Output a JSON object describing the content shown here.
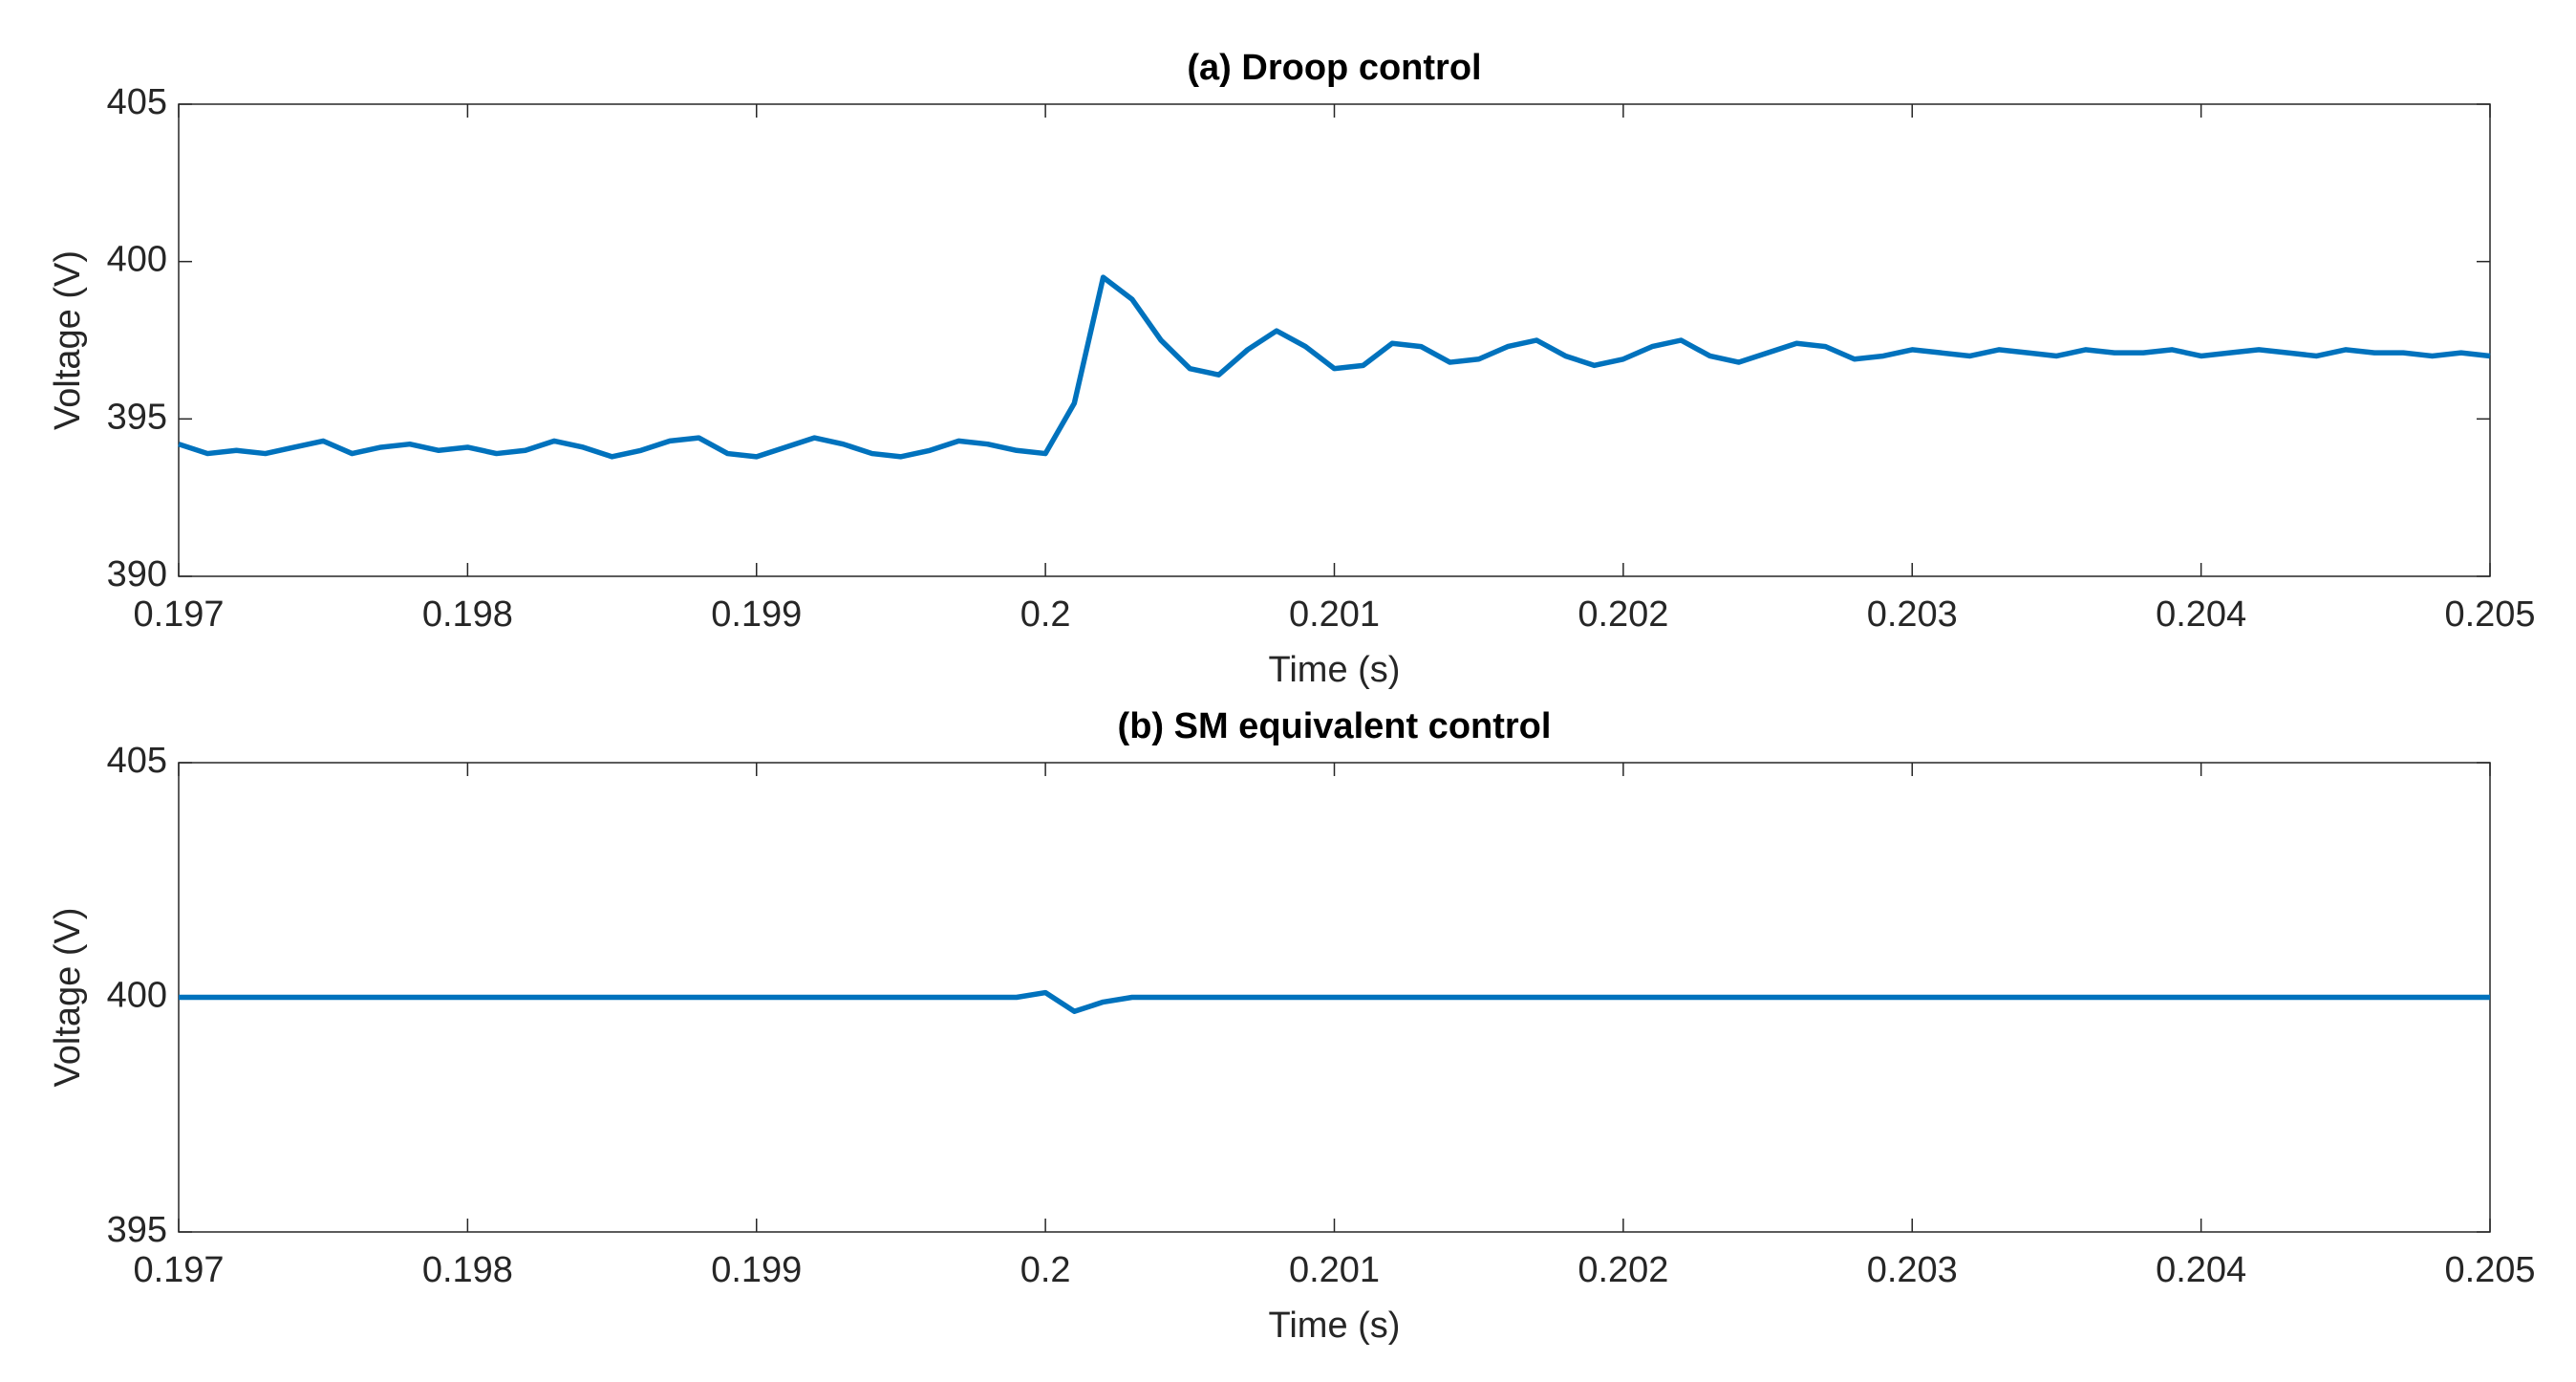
{
  "chart_data": [
    {
      "type": "line",
      "title": "(a) Droop control",
      "xlabel": "Time (s)",
      "ylabel": "Voltage (V)",
      "color": "#0072bd",
      "xlim": [
        0.197,
        0.205
      ],
      "xticks": [
        0.197,
        0.198,
        0.199,
        0.2,
        0.201,
        0.202,
        0.203,
        0.204,
        0.205
      ],
      "ylim": [
        390,
        405
      ],
      "yticks": [
        390,
        395,
        400,
        405
      ],
      "x": [
        0.197,
        0.1971,
        0.1972,
        0.1973,
        0.1974,
        0.1975,
        0.1976,
        0.1977,
        0.1978,
        0.1979,
        0.198,
        0.1981,
        0.1982,
        0.1983,
        0.1984,
        0.1985,
        0.1986,
        0.1987,
        0.1988,
        0.1989,
        0.199,
        0.1991,
        0.1992,
        0.1993,
        0.1994,
        0.1995,
        0.1996,
        0.1997,
        0.1998,
        0.1999,
        0.2,
        0.2001,
        0.2002,
        0.2003,
        0.2004,
        0.2005,
        0.2006,
        0.2007,
        0.2008,
        0.2009,
        0.201,
        0.2011,
        0.2012,
        0.2013,
        0.2014,
        0.2015,
        0.2016,
        0.2017,
        0.2018,
        0.2019,
        0.202,
        0.2021,
        0.2022,
        0.2023,
        0.2024,
        0.2025,
        0.2026,
        0.2027,
        0.2028,
        0.2029,
        0.203,
        0.2031,
        0.2032,
        0.2033,
        0.2034,
        0.2035,
        0.2036,
        0.2037,
        0.2038,
        0.2039,
        0.204,
        0.2041,
        0.2042,
        0.2043,
        0.2044,
        0.2045,
        0.2046,
        0.2047,
        0.2048,
        0.2049,
        0.205
      ],
      "values": [
        394.2,
        393.9,
        394.0,
        393.9,
        394.1,
        394.3,
        393.9,
        394.1,
        394.2,
        394.0,
        394.1,
        393.9,
        394.0,
        394.3,
        394.1,
        393.8,
        394.0,
        394.3,
        394.4,
        393.9,
        393.8,
        394.1,
        394.4,
        394.2,
        393.9,
        393.8,
        394.0,
        394.3,
        394.2,
        394.0,
        393.9,
        395.5,
        399.5,
        398.8,
        397.5,
        396.6,
        396.4,
        397.2,
        397.8,
        397.3,
        396.6,
        396.7,
        397.4,
        397.3,
        396.8,
        396.9,
        397.3,
        397.5,
        397.0,
        396.7,
        396.9,
        397.3,
        397.5,
        397.0,
        396.8,
        397.1,
        397.4,
        397.3,
        396.9,
        397.0,
        397.2,
        397.1,
        397.0,
        397.2,
        397.1,
        397.0,
        397.2,
        397.1,
        397.1,
        397.2,
        397.0,
        397.1,
        397.2,
        397.1,
        397.0,
        397.2,
        397.1,
        397.1,
        397.0,
        397.1,
        397.0
      ]
    },
    {
      "type": "line",
      "title": "(b) SM equivalent control",
      "xlabel": "Time (s)",
      "ylabel": "Voltage (V)",
      "color": "#0072bd",
      "xlim": [
        0.197,
        0.205
      ],
      "xticks": [
        0.197,
        0.198,
        0.199,
        0.2,
        0.201,
        0.202,
        0.203,
        0.204,
        0.205
      ],
      "ylim": [
        395,
        405
      ],
      "yticks": [
        395,
        400,
        405
      ],
      "x": [
        0.197,
        0.1971,
        0.1972,
        0.1973,
        0.1974,
        0.1975,
        0.1976,
        0.1977,
        0.1978,
        0.1979,
        0.198,
        0.1981,
        0.1982,
        0.1983,
        0.1984,
        0.1985,
        0.1986,
        0.1987,
        0.1988,
        0.1989,
        0.199,
        0.1991,
        0.1992,
        0.1993,
        0.1994,
        0.1995,
        0.1996,
        0.1997,
        0.1998,
        0.1999,
        0.2,
        0.2001,
        0.2002,
        0.2003,
        0.2004,
        0.2005,
        0.2006,
        0.2007,
        0.2008,
        0.2009,
        0.201,
        0.2011,
        0.2012,
        0.2013,
        0.2014,
        0.2015,
        0.2016,
        0.2017,
        0.2018,
        0.2019,
        0.202,
        0.2021,
        0.2022,
        0.2023,
        0.2024,
        0.2025,
        0.2026,
        0.2027,
        0.2028,
        0.2029,
        0.203,
        0.2031,
        0.2032,
        0.2033,
        0.2034,
        0.2035,
        0.2036,
        0.2037,
        0.2038,
        0.2039,
        0.204,
        0.2041,
        0.2042,
        0.2043,
        0.2044,
        0.2045,
        0.2046,
        0.2047,
        0.2048,
        0.2049,
        0.205
      ],
      "values": [
        400,
        400,
        400,
        400,
        400,
        400,
        400,
        400,
        400,
        400,
        400,
        400,
        400,
        400,
        400,
        400,
        400,
        400,
        400,
        400,
        400,
        400,
        400,
        400,
        400,
        400,
        400,
        400,
        400,
        400,
        400.1,
        399.7,
        399.9,
        400,
        400,
        400,
        400,
        400,
        400,
        400,
        400,
        400,
        400,
        400,
        400,
        400,
        400,
        400,
        400,
        400,
        400,
        400,
        400,
        400,
        400,
        400,
        400,
        400,
        400,
        400,
        400,
        400,
        400,
        400,
        400,
        400,
        400,
        400,
        400,
        400,
        400,
        400,
        400,
        400,
        400,
        400,
        400,
        400,
        400,
        400,
        400
      ]
    }
  ]
}
